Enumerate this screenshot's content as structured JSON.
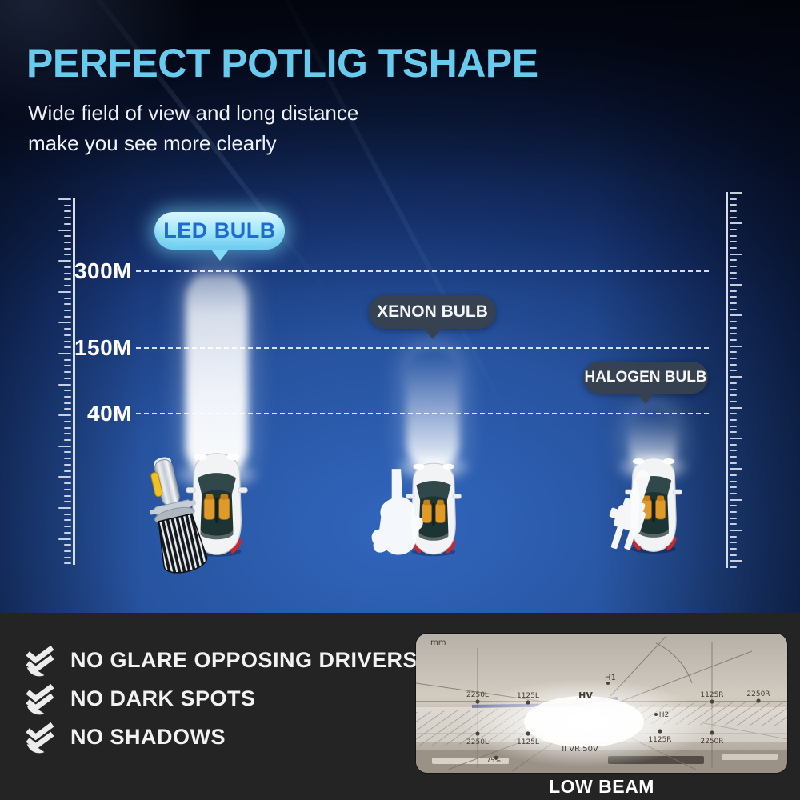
{
  "header": {
    "title": "PERFECT POTLIG TSHAPE",
    "subtitle_line1": "Wide field of view and long distance",
    "subtitle_line2": "make you see more clearly"
  },
  "scale_marks": [
    {
      "label": "300M"
    },
    {
      "label": "150M"
    },
    {
      "label": "40M"
    }
  ],
  "comparison": [
    {
      "bulb": "LED BULB",
      "beam_distance": "300M"
    },
    {
      "bulb": "XENON BULB",
      "beam_distance": "150M"
    },
    {
      "bulb": "HALOGEN BULB",
      "beam_distance": "40M"
    }
  ],
  "features": [
    {
      "icon": "double-check-icon",
      "label": "NO GLARE OPPOSING DRIVERS"
    },
    {
      "icon": "double-check-icon",
      "label": "NO DARK SPOTS"
    },
    {
      "icon": "double-check-icon",
      "label": "NO SHADOWS"
    }
  ],
  "photo": {
    "caption": "LOW BEAM",
    "corner_label": "mm",
    "top_row": [
      "2250L",
      "1125L",
      "1125R",
      "2250R"
    ],
    "bottom_row": [
      "2250L",
      "1125L",
      "1125R",
      "2250R"
    ],
    "markers": [
      "HV",
      "H1",
      "H2"
    ],
    "extra": [
      "75%",
      "II VR 50V"
    ]
  },
  "colors": {
    "title_text": "#68cbee",
    "subtitle_text": "#eef1f6",
    "background_center_blue": "#2e62b8",
    "background_edge": "#070d1f",
    "led_badge_bg": "#9fe6fa",
    "led_badge_text": "#1f6bd0",
    "dark_badge_bg": "#37414e",
    "badge_text_light": "#ffffff",
    "beam_white": "#ffffff",
    "panel_bg": "#242424",
    "feature_text": "#f2f2f2",
    "seat_orange": "#e09a2a"
  }
}
